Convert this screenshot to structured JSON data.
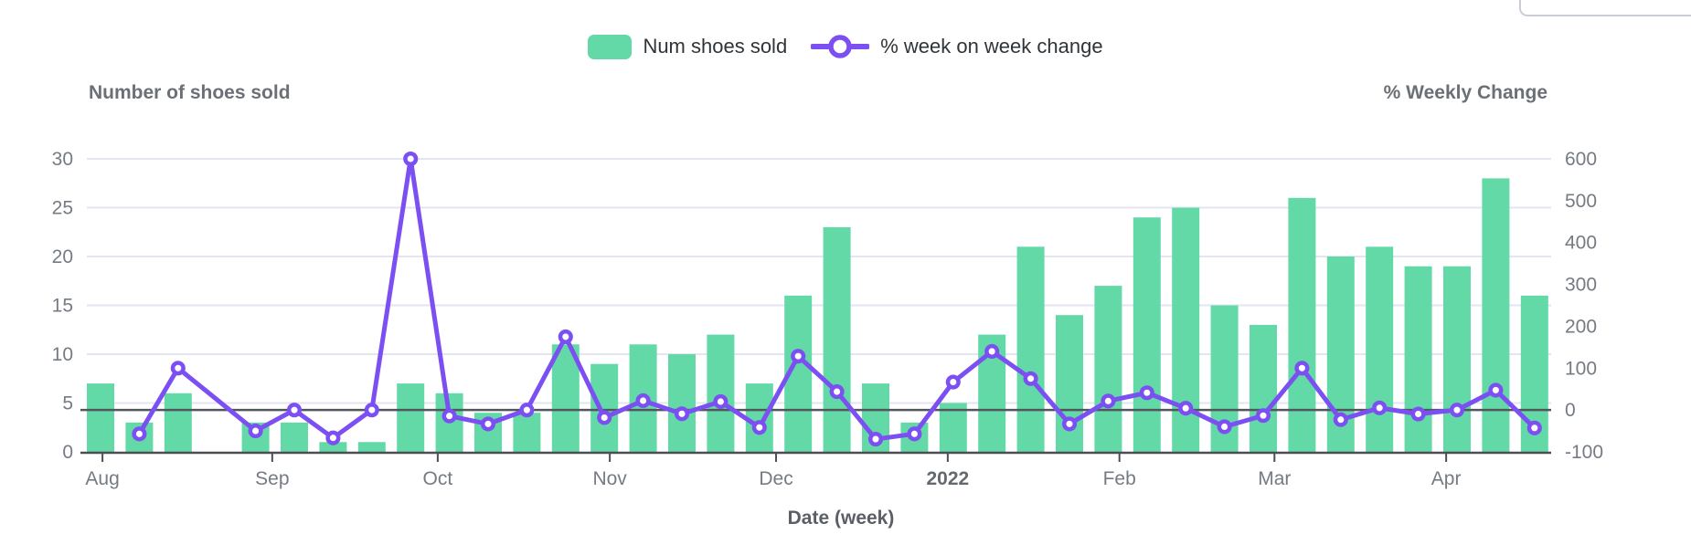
{
  "legend": [
    {
      "label": "Num shoes sold",
      "type": "bar",
      "color": "#62d9a6"
    },
    {
      "label": "% week on week change",
      "type": "line",
      "color": "#7c4ff2"
    }
  ],
  "left_axis_title": "Number of shoes sold",
  "right_axis_title": "% Weekly Change",
  "xaxis_title": "Date (week)",
  "colors": {
    "bar": "#62d9a6",
    "line": "#7c4ff2",
    "grid": "#e3e6f2",
    "axis": "#4b4f55",
    "tick_text": "#757b83",
    "bold_tick_text": "#64696f"
  },
  "chart_data": {
    "type": "combo",
    "x_description": "weekly slots Aug 2021 - Apr 2022, one missing week (index 3)",
    "series": [
      {
        "name": "Num shoes sold",
        "type": "bar",
        "axis": "left",
        "values": [
          7,
          3,
          6,
          null,
          3,
          3,
          1,
          1,
          7,
          6,
          4,
          4,
          11,
          9,
          11,
          10,
          12,
          7,
          16,
          23,
          7,
          3,
          5,
          12,
          21,
          14,
          17,
          24,
          25,
          15,
          13,
          26,
          20,
          21,
          19,
          19,
          28,
          16
        ]
      },
      {
        "name": "% week on week change",
        "type": "line",
        "axis": "right",
        "values": [
          null,
          -57.1,
          100,
          null,
          -50,
          0,
          -66.7,
          0,
          600,
          -14.3,
          -33.3,
          0,
          175,
          -18.2,
          22.2,
          -9.1,
          20,
          -41.7,
          128.6,
          43.8,
          -69.6,
          -57.1,
          66.7,
          140,
          75,
          -33.3,
          21.4,
          41.2,
          4.2,
          -40,
          -13.3,
          100,
          -23.1,
          5,
          -9.5,
          0,
          47.4,
          -42.9
        ]
      }
    ],
    "x_ticks": [
      {
        "label": "Aug",
        "slot": 0.05
      },
      {
        "label": "Sep",
        "slot": 4.43
      },
      {
        "label": "Oct",
        "slot": 8.7
      },
      {
        "label": "Nov",
        "slot": 13.14
      },
      {
        "label": "Dec",
        "slot": 17.43
      },
      {
        "label": "2022",
        "slot": 21.86,
        "bold": true
      },
      {
        "label": "Feb",
        "slot": 26.29
      },
      {
        "label": "Mar",
        "slot": 30.29
      },
      {
        "label": "Apr",
        "slot": 34.72
      }
    ],
    "left_axis": {
      "title": "Number of shoes sold",
      "min": 0,
      "max": 30,
      "ticks": [
        0,
        5,
        10,
        15,
        20,
        25,
        30
      ]
    },
    "right_axis": {
      "title": "% Weekly Change",
      "min": -100,
      "max": 600,
      "ticks": [
        -100,
        0,
        100,
        200,
        300,
        400,
        500,
        600
      ]
    },
    "xlabel": "Date (week)",
    "grid": true,
    "legend_position": "top-center"
  }
}
